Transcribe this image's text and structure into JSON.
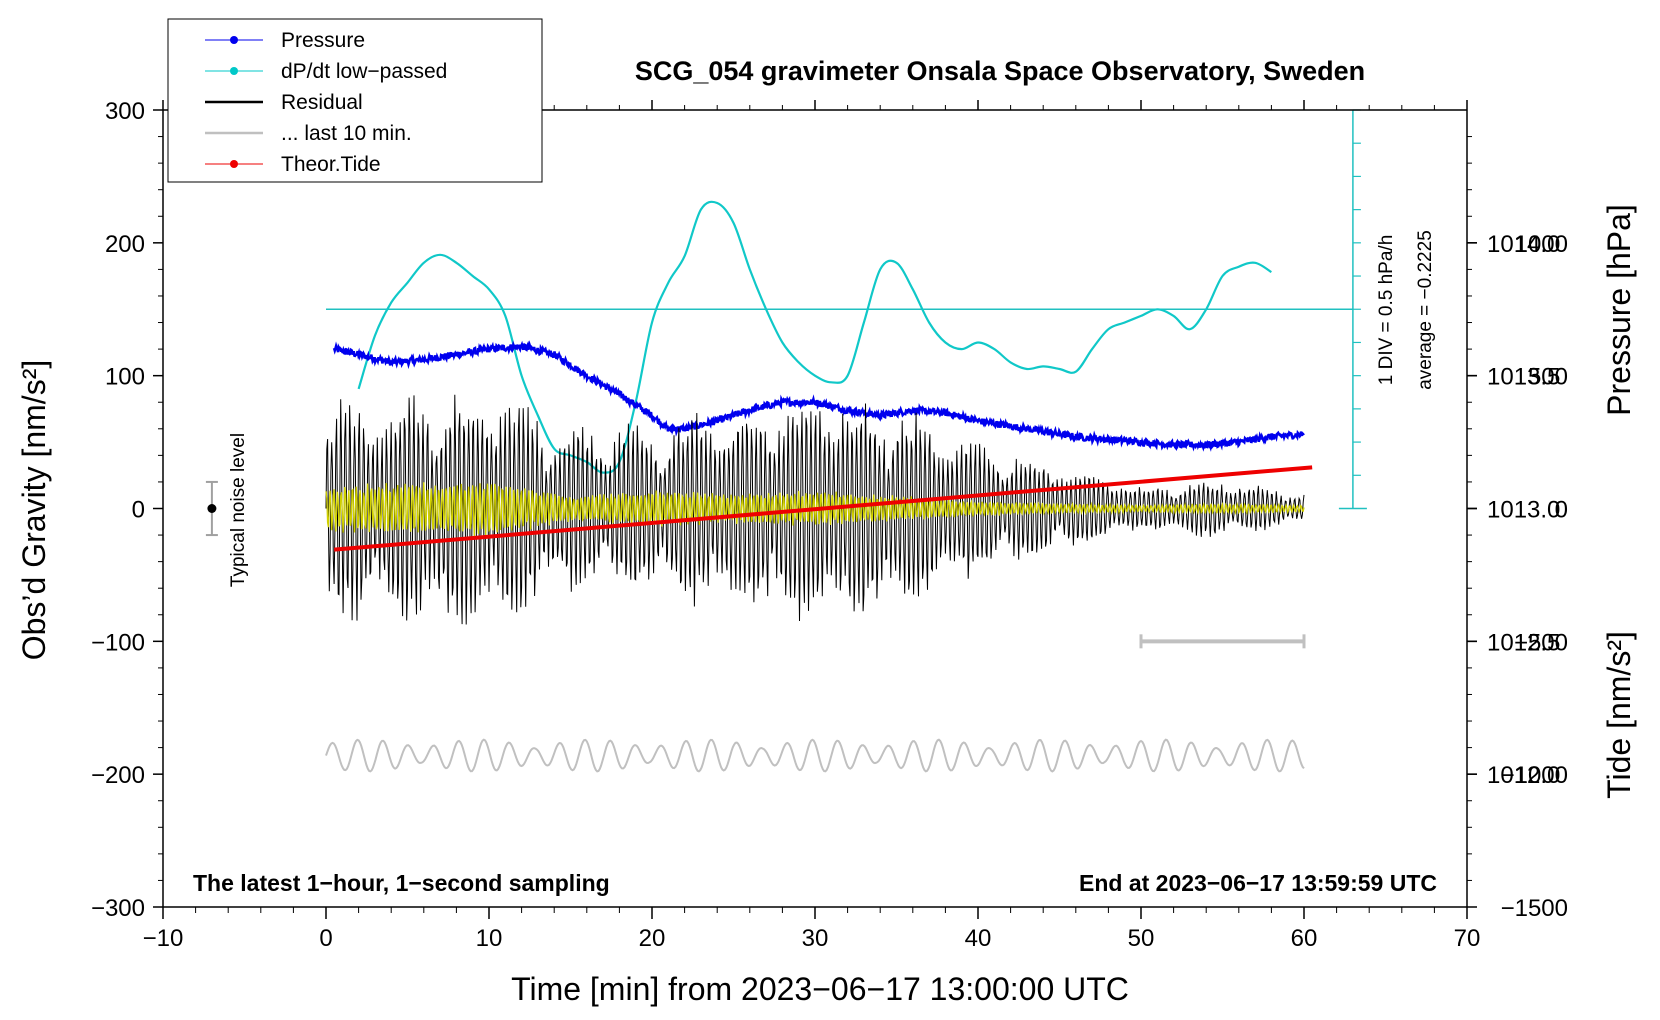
{
  "chart_data": {
    "type": "line",
    "title": "SCG_054 gravimeter Onsala Space Observatory, Sweden",
    "xlabel": "Time [min] from 2023−06−17 13:00:00 UTC",
    "ylabel_left": "Obs’d Gravity [nm/s²]",
    "ylabel_pressure": "Pressure [hPa]",
    "ylabel_tide": "Tide [nm/s²]",
    "xlim": [
      -10,
      70
    ],
    "ylim": [
      -300,
      300
    ],
    "pressure_ylim": [
      1011.5,
      1014.5
    ],
    "tide_ylim": [
      -1500,
      1500
    ],
    "x_ticks": [
      -10,
      0,
      10,
      20,
      30,
      40,
      50,
      60,
      70
    ],
    "x_tick_labels": [
      "−10",
      "0",
      "10",
      "20",
      "30",
      "40",
      "50",
      "60",
      "70"
    ],
    "y_ticks": [
      300,
      200,
      100,
      0,
      -100,
      -200,
      -300
    ],
    "y_tick_labels": [
      "300",
      "200",
      "100",
      "0",
      "−100",
      "−200",
      "−300"
    ],
    "pressure_ticks": [
      1014.0,
      1013.5,
      1013.0,
      1012.5,
      1012.0
    ],
    "pressure_tick_labels": [
      "1014.0",
      "1013.5",
      "1013.0",
      "1012.5",
      "1012.0"
    ],
    "tide_ticks": [
      1000,
      500,
      0,
      -500,
      -1000,
      -1500
    ],
    "tide_tick_labels": [
      "1000",
      "500",
      "0",
      "−500",
      "−1000",
      "−1500"
    ],
    "legend": {
      "position": "top-left",
      "entries": [
        {
          "label": "Pressure",
          "color": "#0000ee",
          "marker": "dot"
        },
        {
          "label": "dP/dt low−passed",
          "color": "#00c8c8",
          "marker": "dot"
        },
        {
          "label": "Residual",
          "color": "#000000",
          "marker": "none"
        },
        {
          "label": "... last 10 min.",
          "color": "#c0c0c0",
          "marker": "none"
        },
        {
          "label": "Theor.Tide",
          "color": "#ee0000",
          "marker": "dot"
        }
      ]
    },
    "series": [
      {
        "name": "Pressure",
        "units": "hPa",
        "color": "#0000ee",
        "x": [
          0.5,
          2,
          4,
          6,
          8,
          10,
          12,
          14,
          16,
          18,
          20,
          21,
          22,
          24,
          26,
          28,
          30,
          32,
          34,
          36,
          38,
          40,
          42,
          44,
          46,
          48,
          50,
          52,
          54,
          56,
          58,
          60
        ],
        "y": [
          1013.6,
          1013.58,
          1013.55,
          1013.56,
          1013.58,
          1013.6,
          1013.61,
          1013.58,
          1013.5,
          1013.43,
          1013.35,
          1013.3,
          1013.3,
          1013.33,
          1013.37,
          1013.4,
          1013.4,
          1013.37,
          1013.35,
          1013.37,
          1013.36,
          1013.33,
          1013.31,
          1013.29,
          1013.27,
          1013.26,
          1013.25,
          1013.24,
          1013.24,
          1013.25,
          1013.27,
          1013.28
        ]
      },
      {
        "name": "dP/dt low−passed",
        "units": "1 DIV = 0.5 hPa/h",
        "color": "#00c8c8",
        "baseline_label": "average = −0.2225",
        "baseline": 150,
        "x": [
          2,
          3,
          4,
          5,
          6,
          7,
          8,
          9,
          10,
          11,
          12,
          13,
          14,
          15,
          16,
          17,
          18,
          19,
          20,
          21,
          22,
          23,
          24,
          25,
          26,
          27,
          28,
          29,
          30,
          31,
          32,
          33,
          34,
          35,
          36,
          37,
          38,
          39,
          40,
          41,
          42,
          43,
          44,
          45,
          46,
          47,
          48,
          49,
          50,
          51,
          52,
          53,
          54,
          55,
          56,
          57,
          58
        ],
        "y": [
          90,
          130,
          155,
          170,
          185,
          191,
          185,
          175,
          165,
          145,
          100,
          70,
          45,
          40,
          35,
          27,
          35,
          80,
          140,
          170,
          190,
          225,
          230,
          215,
          180,
          150,
          125,
          110,
          100,
          95,
          100,
          140,
          180,
          185,
          165,
          140,
          125,
          120,
          125,
          120,
          110,
          105,
          107,
          105,
          103,
          120,
          135,
          140,
          145,
          150,
          145,
          135,
          150,
          175,
          182,
          185,
          178
        ]
      },
      {
        "name": "Residual",
        "units": "nm/s²",
        "color": "#000000",
        "envelope_x": [
          0,
          5,
          10,
          15,
          20,
          25,
          30,
          35,
          40,
          45,
          50,
          55,
          60
        ],
        "envelope_amplitude": [
          75,
          80,
          85,
          55,
          60,
          70,
          80,
          70,
          45,
          30,
          15,
          20,
          10
        ]
      },
      {
        "name": "Residual (yellow trace)",
        "units": "nm/s²",
        "color": "#d0d000",
        "envelope_x": [
          0,
          5,
          10,
          15,
          20,
          25,
          30,
          35,
          40,
          45,
          50,
          55,
          60
        ],
        "envelope_amplitude": [
          18,
          20,
          22,
          10,
          14,
          12,
          14,
          10,
          6,
          4,
          3,
          4,
          3
        ]
      },
      {
        "name": "... last 10 min.",
        "units": "nm/s²",
        "color": "#c0c0c0",
        "offset": -186,
        "amplitude": 12
      },
      {
        "name": "Theor.Tide",
        "units": "nm/s²",
        "color": "#ee0000",
        "x": [
          0.5,
          60.5
        ],
        "y": [
          -155,
          155
        ]
      }
    ],
    "annotations": {
      "noise_label": "Typical noise level",
      "noise_point": {
        "x": -7,
        "y": 0,
        "error": 20
      },
      "scale_label": "1 DIV = 0.5 hPa/h",
      "average_label": "average = −0.2225",
      "last10_bar": {
        "x_start": 50,
        "x_end": 60,
        "y": -100
      },
      "footer_left": "The latest 1−hour, 1−second sampling",
      "footer_right": "End at 2023−06−17 13:59:59 UTC"
    }
  }
}
